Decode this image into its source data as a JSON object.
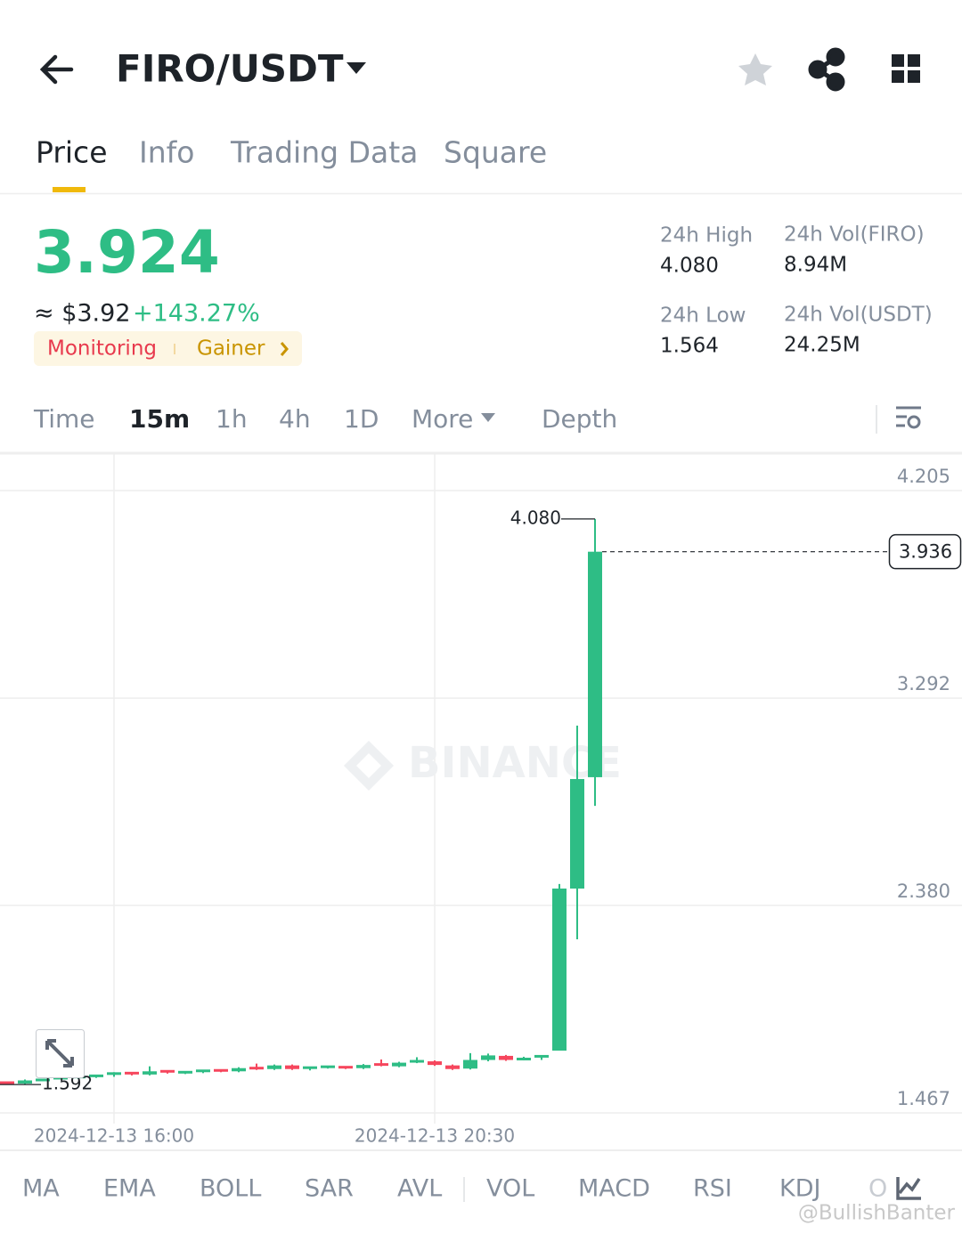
{
  "header": {
    "pair": "FIRO/USDT"
  },
  "tabs": [
    "Price",
    "Info",
    "Trading Data",
    "Square"
  ],
  "ticker": {
    "price": "3.924",
    "usd": "≈ $3.92",
    "change": "+143.27%",
    "tags": [
      "Monitoring",
      "Gainer"
    ]
  },
  "stats": [
    {
      "label": "24h High",
      "value": "4.080"
    },
    {
      "label": "24h Vol(FIRO)",
      "value": "8.94M"
    },
    {
      "label": "24h Low",
      "value": "1.564"
    },
    {
      "label": "24h Vol(USDT)",
      "value": "24.25M"
    }
  ],
  "intervals": [
    "Time",
    "15m",
    "1h",
    "4h",
    "1D",
    "More",
    "Depth"
  ],
  "indicators": [
    "MA",
    "EMA",
    "BOLL",
    "SAR",
    "AVL",
    "VOL",
    "MACD",
    "RSI",
    "KDJ",
    "O"
  ],
  "watermark_user": "@BullishBanter",
  "chart_data": {
    "type": "candlestick",
    "watermark": "BINANCE",
    "categories": [
      null,
      null,
      null,
      null,
      null,
      null,
      "2024-12-13 16:00",
      null,
      null,
      null,
      null,
      null,
      null,
      null,
      null,
      null,
      null,
      null,
      null,
      null,
      null,
      null,
      null,
      null,
      "2024-12-13 20:30",
      null,
      null,
      null,
      null,
      null,
      null,
      null,
      null,
      null
    ],
    "open": [
      1.6,
      1.596,
      1.61,
      1.618,
      1.62,
      1.625,
      1.63,
      1.642,
      1.636,
      1.65,
      1.642,
      1.646,
      1.654,
      1.65,
      1.664,
      1.66,
      1.676,
      1.66,
      1.666,
      1.668,
      1.664,
      1.68,
      1.672,
      1.69,
      1.694,
      1.676,
      1.662,
      1.7,
      1.718,
      1.7,
      1.706,
      1.741,
      2.454,
      2.944
    ],
    "high": [
      1.604,
      1.614,
      1.616,
      1.624,
      1.628,
      1.634,
      1.646,
      1.646,
      1.672,
      1.652,
      1.65,
      1.656,
      1.658,
      1.668,
      1.684,
      1.68,
      1.68,
      1.67,
      1.674,
      1.672,
      1.682,
      1.702,
      1.692,
      1.712,
      1.698,
      1.68,
      1.73,
      1.728,
      1.722,
      1.714,
      1.72,
      2.474,
      3.171,
      4.08
    ],
    "low": [
      1.594,
      1.592,
      1.606,
      1.614,
      1.616,
      1.621,
      1.626,
      1.632,
      1.632,
      1.64,
      1.638,
      1.642,
      1.646,
      1.646,
      1.656,
      1.656,
      1.656,
      1.654,
      1.662,
      1.66,
      1.66,
      1.672,
      1.668,
      1.686,
      1.674,
      1.656,
      1.658,
      1.694,
      1.696,
      1.698,
      1.7,
      1.741,
      2.231,
      2.818
    ],
    "close": [
      1.596,
      1.61,
      1.612,
      1.62,
      1.625,
      1.63,
      1.64,
      1.636,
      1.65,
      1.644,
      1.646,
      1.652,
      1.65,
      1.664,
      1.66,
      1.676,
      1.66,
      1.666,
      1.67,
      1.664,
      1.678,
      1.676,
      1.688,
      1.694,
      1.678,
      1.66,
      1.7,
      1.72,
      1.7,
      1.704,
      1.716,
      2.454,
      2.936,
      3.936
    ],
    "up_color": "#2ebd85",
    "down_color": "#f6465d",
    "ylim": [
      1.467,
      4.205
    ],
    "yticks": [
      {
        "value": 1.467,
        "label": "1.467"
      },
      {
        "value": 2.38,
        "label": "2.380"
      },
      {
        "value": 3.292,
        "label": "3.292"
      },
      {
        "value": 4.205,
        "label": "4.205"
      }
    ],
    "annotations": [
      {
        "value": 4.08,
        "label": "4.080"
      },
      {
        "value": 1.592,
        "label": "1.592"
      }
    ],
    "last_price": {
      "value": 3.936,
      "label": "3.936"
    },
    "grid": true
  }
}
